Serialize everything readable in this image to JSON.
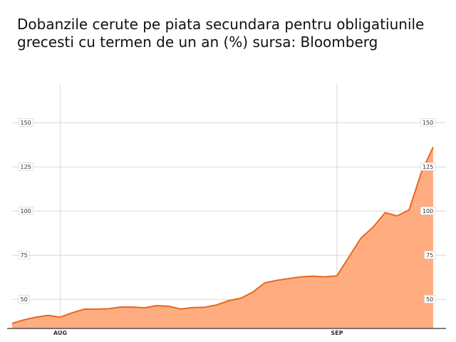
{
  "chart_data": {
    "type": "area",
    "title_line1": "Dobanzile cerute pe piata secundara pentru obligatiunile",
    "title_line2": "grecesti cu termen de un an (%) sursa: Bloomberg",
    "xlabel": "",
    "ylabel": "",
    "ylim": [
      35,
      160
    ],
    "y_ticks": [
      50,
      75,
      100,
      125,
      150
    ],
    "y_tick_labels": [
      "50",
      "75",
      "100",
      "125",
      "150"
    ],
    "x_ticks": [
      {
        "index": 4,
        "label": "AUG"
      },
      {
        "index": 27,
        "label": "SEP"
      }
    ],
    "grid": true,
    "values": [
      36.5,
      38.5,
      40,
      41,
      40,
      42.5,
      44.5,
      44.5,
      44.7,
      45.7,
      45.7,
      45.3,
      46.5,
      46.2,
      44.6,
      45.4,
      45.6,
      46.9,
      49.3,
      50.7,
      54.1,
      59.4,
      60.8,
      61.8,
      62.8,
      63.2,
      62.8,
      63.4,
      74.1,
      84.8,
      90.9,
      99.1,
      97.3,
      100.7,
      121.6,
      136.3
    ],
    "colors": {
      "line": "#e8681c",
      "fill": "#ffad80",
      "grid": "#d8d8d8",
      "axis": "#333333",
      "label_border": "#cccccc"
    }
  }
}
